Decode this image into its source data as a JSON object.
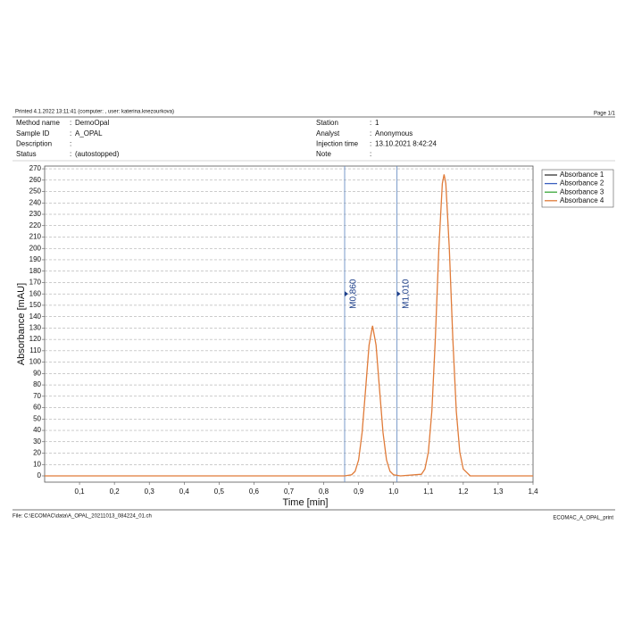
{
  "header": {
    "printed": "Printed 4.1.2022 13:11:41 (computer: , user: katerina.knezourkova)",
    "page": "Page 1/1"
  },
  "info": {
    "left": [
      {
        "label": "Method name",
        "value": "DemoOpal"
      },
      {
        "label": "Sample ID",
        "value": "A_OPAL"
      },
      {
        "label": "Description",
        "value": ""
      },
      {
        "label": "Status",
        "value": "(autostopped)"
      }
    ],
    "right": [
      {
        "label": "Station",
        "value": "1"
      },
      {
        "label": "Analyst",
        "value": "Anonymous"
      },
      {
        "label": "Injection time",
        "value": "13.10.2021 8:42:24"
      },
      {
        "label": "Note",
        "value": ""
      }
    ]
  },
  "footer": {
    "file": "File: C:\\ECOMAC\\data\\A_OPAL_20211013_084224_01.ch",
    "report": "ECOMAC_A_OPAL_print"
  },
  "chart_data": {
    "type": "line",
    "x_label": "Time [min]",
    "y_label": "Absorbance [mAU]",
    "xlim": [
      0,
      1.4
    ],
    "ylim": [
      -5.5,
      272.4
    ],
    "xticks": [
      {
        "value": 0.1,
        "label": "0,1"
      },
      {
        "value": 0.2,
        "label": "0,2"
      },
      {
        "value": 0.3,
        "label": "0,3"
      },
      {
        "value": 0.4,
        "label": "0,4"
      },
      {
        "value": 0.5,
        "label": "0,5"
      },
      {
        "value": 0.6,
        "label": "0,6"
      },
      {
        "value": 0.7,
        "label": "0,7"
      },
      {
        "value": 0.8,
        "label": "0,8"
      },
      {
        "value": 0.9,
        "label": "0,9"
      },
      {
        "value": 1.0,
        "label": "1,0"
      },
      {
        "value": 1.1,
        "label": "1,1"
      },
      {
        "value": 1.2,
        "label": "1,2"
      },
      {
        "value": 1.3,
        "label": "1,3"
      },
      {
        "value": 1.4,
        "label": "1,4"
      }
    ],
    "yticks": [
      0,
      10,
      20,
      30,
      40,
      50,
      60,
      70,
      80,
      90,
      100,
      110,
      120,
      130,
      140,
      150,
      160,
      170,
      180,
      190,
      200,
      210,
      220,
      230,
      240,
      250,
      260,
      270
    ],
    "grid": true,
    "legend": "top-right",
    "markers": [
      {
        "value": 0.86,
        "label": "M0,860",
        "color": "#6b8fc4"
      },
      {
        "value": 1.01,
        "label": "M1,010",
        "color": "#6b8fc4"
      }
    ],
    "x": [
      0,
      0.8,
      0.86,
      0.88,
      0.89,
      0.9,
      0.91,
      0.92,
      0.93,
      0.94,
      0.95,
      0.96,
      0.97,
      0.98,
      0.99,
      1.0,
      1.02,
      1.08,
      1.09,
      1.1,
      1.11,
      1.12,
      1.13,
      1.14,
      1.145,
      1.15,
      1.16,
      1.17,
      1.18,
      1.19,
      1.2,
      1.22,
      1.4
    ],
    "series": [
      {
        "name": "Absorbance 1",
        "color": "#333333"
      },
      {
        "name": "Absorbance 2",
        "color": "#3a5fbf"
      },
      {
        "name": "Absorbance 3",
        "color": "#3aa63a"
      },
      {
        "name": "Absorbance 4",
        "color": "#e07b39",
        "values": [
          0,
          0,
          0,
          1,
          4,
          14,
          38,
          76,
          115,
          132,
          115,
          76,
          38,
          14,
          4,
          1,
          0,
          1.4,
          6,
          21,
          57,
          121,
          200,
          257,
          265,
          257,
          200,
          121,
          57,
          21,
          6,
          0,
          0
        ]
      }
    ]
  }
}
